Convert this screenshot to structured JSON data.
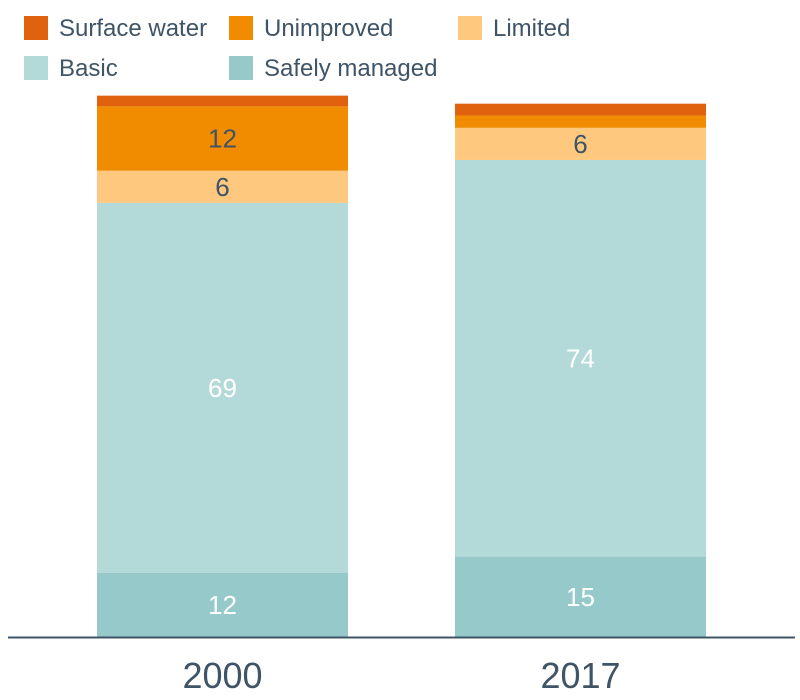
{
  "chart_data": {
    "type": "bar",
    "stacked": true,
    "categories": [
      "2000",
      "2017"
    ],
    "series": [
      {
        "name": "Safely managed",
        "values": [
          12,
          15
        ],
        "color": "#96c9c9",
        "labels": [
          "12",
          "15"
        ],
        "label_color": "#ffffff"
      },
      {
        "name": "Basic",
        "values": [
          69,
          74
        ],
        "color": "#b3dad9",
        "labels": [
          "69",
          "74"
        ],
        "label_color": "#ffffff"
      },
      {
        "name": "Limited",
        "values": [
          6,
          6
        ],
        "color": "#fec87f",
        "labels": [
          "6",
          "6"
        ],
        "label_color": "#3f5466"
      },
      {
        "name": "Unimproved",
        "values": [
          12,
          2.3
        ],
        "color": "#f18c00",
        "labels": [
          "12",
          ""
        ],
        "label_color": "#3f5466"
      },
      {
        "name": "Surface water",
        "values": [
          2,
          2.2
        ],
        "color": "#e0620f",
        "labels": [
          "",
          ""
        ],
        "label_color": "#3f5466"
      }
    ],
    "legend_order": [
      "Surface water",
      "Unimproved",
      "Limited",
      "Basic",
      "Safely managed"
    ],
    "legend_position": "top-left",
    "ylim": [
      0,
      100
    ],
    "grid": false,
    "axis_color": "#3f5466",
    "text_color": "#3f5466"
  }
}
